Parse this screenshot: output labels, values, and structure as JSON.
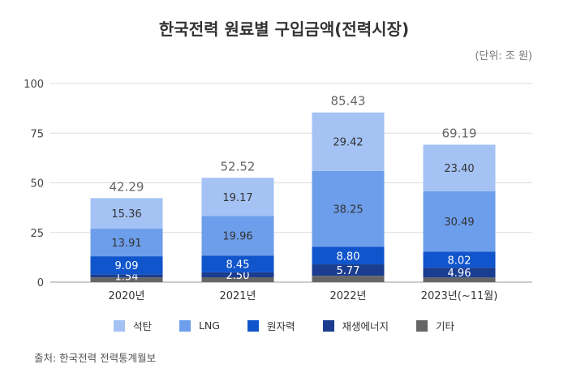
{
  "chart_data": {
    "type": "bar",
    "stacked": true,
    "title": "한국전력 원료별 구입금액(전력시장)",
    "unit_label": "(단위: 조 원)",
    "categories": [
      "2020년",
      "2021년",
      "2022년",
      "2023년(~11월)"
    ],
    "series": [
      {
        "name": "기타",
        "color": "#666666",
        "values": [
          null,
          null,
          null,
          null
        ]
      },
      {
        "name": "재생에너지",
        "color": "#1a3d8f",
        "values": [
          1.54,
          2.5,
          5.77,
          4.96
        ]
      },
      {
        "name": "원자력",
        "color": "#1155cc",
        "values": [
          9.09,
          8.45,
          8.8,
          8.02
        ]
      },
      {
        "name": "LNG",
        "color": "#6d9eeb",
        "values": [
          13.91,
          19.96,
          38.25,
          30.49
        ]
      },
      {
        "name": "석탄",
        "color": "#a4c2f4",
        "values": [
          15.36,
          19.17,
          29.42,
          23.4
        ]
      }
    ],
    "other_estimated": [
      2.39,
      2.44,
      3.19,
      2.32
    ],
    "totals": [
      "42.29",
      "52.52",
      "85.43",
      "69.19"
    ],
    "y_ticks": [
      "0",
      "25",
      "50",
      "75",
      "100"
    ],
    "ylim": [
      0,
      100
    ],
    "grid": true,
    "legend_position": "bottom"
  },
  "legend_order": [
    4,
    3,
    2,
    1,
    0
  ],
  "source": "출처: 한국전력 전력통계월보"
}
